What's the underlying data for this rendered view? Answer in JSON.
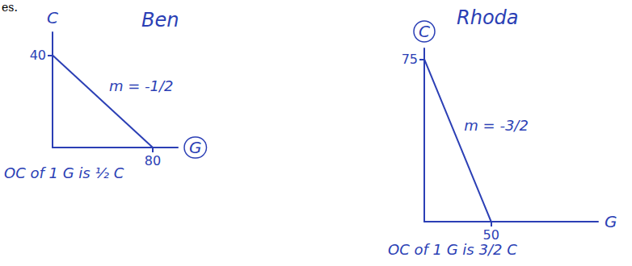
{
  "page_text": "es.",
  "chart_data": [
    {
      "type": "line",
      "title": "Ben",
      "x": [
        0,
        80
      ],
      "values": [
        40,
        0
      ],
      "color": "#2b3fb5",
      "xlim": [
        0,
        100
      ],
      "ylim": [
        0,
        50
      ],
      "xticks": [
        80
      ],
      "yticks": [
        40
      ],
      "x_label": "G",
      "y_label": "C",
      "grid": false,
      "annotations": [
        "m = -1/2",
        "OC of 1 G is ½ C"
      ]
    },
    {
      "type": "line",
      "title": "Rhoda",
      "x": [
        0,
        50
      ],
      "values": [
        75,
        0
      ],
      "color": "#2b3fb5",
      "xlim": [
        0,
        130
      ],
      "ylim": [
        0,
        80
      ],
      "xticks": [
        50
      ],
      "yticks": [
        75
      ],
      "x_label": "G",
      "y_label": "C",
      "grid": false,
      "annotations": [
        "m = -3/2",
        "OC of 1 G is 3/2 C"
      ]
    }
  ]
}
